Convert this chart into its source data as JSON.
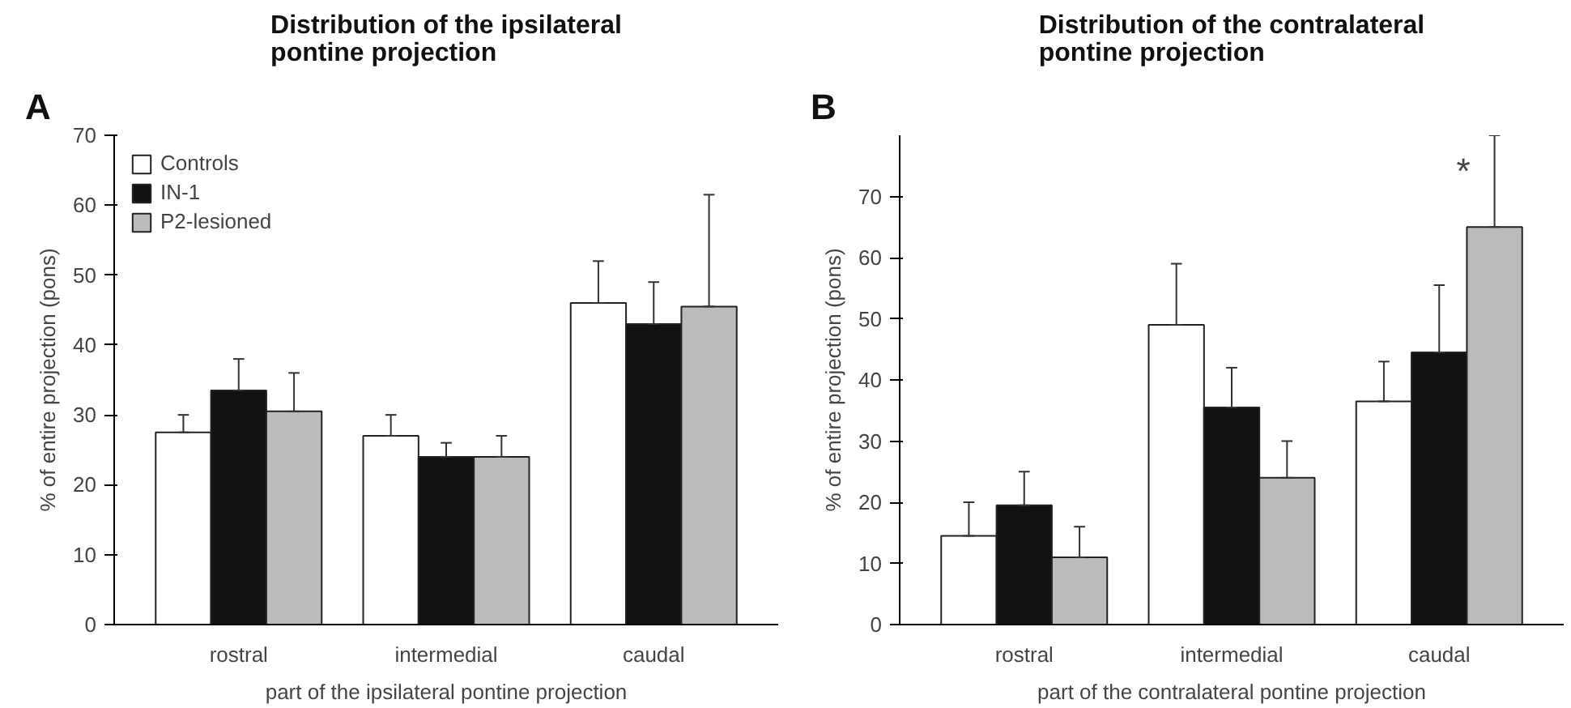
{
  "chart_data": [
    {
      "type": "bar",
      "title": "Distribution of the ipsilateral\npontine projection",
      "xlabel": "part of the ipsilateral pontine projection",
      "ylabel": "% of entire projection (pons)",
      "categories": [
        "rostral",
        "intermedial",
        "caudal"
      ],
      "ylim": [
        0,
        70
      ],
      "yticks": [
        0,
        10,
        20,
        30,
        40,
        50,
        60,
        70
      ],
      "grid": false,
      "legend": "top left",
      "annotations": [
        "A"
      ],
      "series": [
        {
          "name": "Controls",
          "color": "#ffffff",
          "values": [
            27.5,
            27,
            46
          ],
          "errors": [
            [
              27.5,
              30
            ],
            [
              27,
              30
            ],
            [
              46,
              52
            ]
          ]
        },
        {
          "name": "IN-1",
          "color": "#111111",
          "values": [
            33.5,
            24,
            43
          ],
          "errors": [
            [
              33.5,
              38
            ],
            [
              24,
              26
            ],
            [
              43,
              49
            ]
          ]
        },
        {
          "name": "P2-lesioned",
          "color": "#bbbbbb",
          "values": [
            30.5,
            24,
            45.5
          ],
          "errors": [
            [
              30.5,
              36
            ],
            [
              24,
              27
            ],
            [
              45.5,
              61.5
            ]
          ]
        }
      ]
    },
    {
      "type": "bar",
      "title": "Distribution of the contralateral\npontine projection",
      "xlabel": "part of the contralateral pontine projection",
      "ylabel": "% of entire projection (pons)",
      "categories": [
        "rostral",
        "intermedial",
        "caudal"
      ],
      "ylim": [
        0,
        80
      ],
      "yticks": [
        0,
        10,
        20,
        30,
        40,
        50,
        60,
        70
      ],
      "grid": false,
      "legend": false,
      "annotations": [
        "B",
        "*"
      ],
      "series": [
        {
          "color": "#ffffff",
          "values": [
            14.5,
            49,
            36.5
          ],
          "errors": [
            [
              14.5,
              20
            ],
            [
              49,
              59
            ],
            [
              36.5,
              43
            ]
          ]
        },
        {
          "color": "#111111",
          "values": [
            19.5,
            35.5,
            44.5
          ],
          "errors": [
            [
              19.5,
              25
            ],
            [
              35.5,
              42
            ],
            [
              44.5,
              55.5
            ]
          ]
        },
        {
          "color": "#bbbbbb",
          "values": [
            11,
            24,
            65
          ],
          "errors": [
            [
              11,
              16
            ],
            [
              24,
              30
            ],
            [
              65,
              80
            ]
          ]
        }
      ]
    }
  ]
}
